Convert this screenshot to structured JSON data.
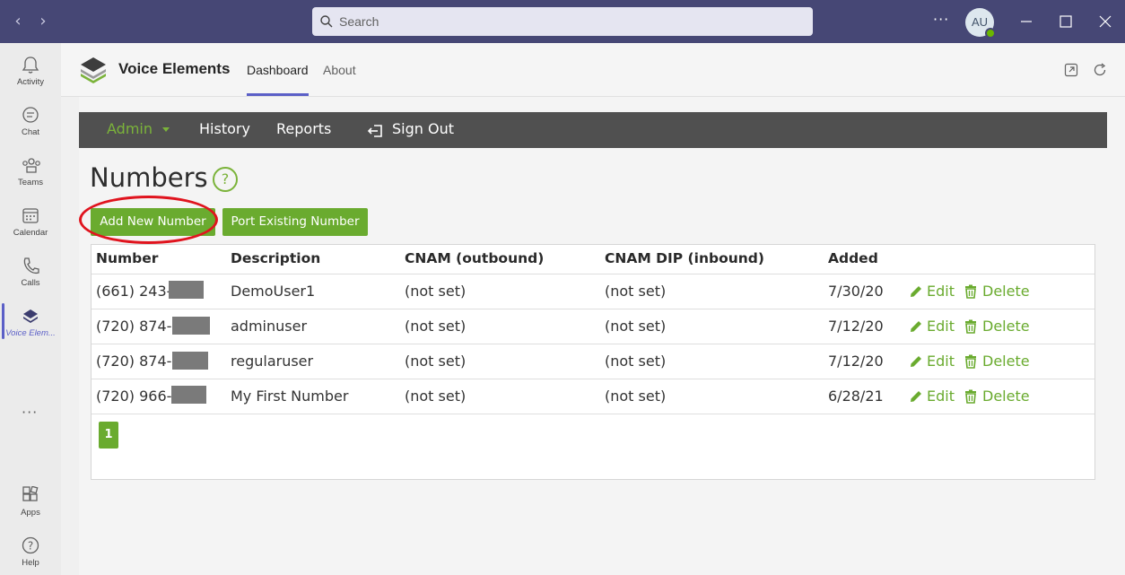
{
  "titlebar": {
    "search_placeholder": "Search",
    "more_label": "···",
    "avatar_initials": "AU"
  },
  "rail": {
    "items": [
      {
        "label": "Activity",
        "icon": "bell-icon"
      },
      {
        "label": "Chat",
        "icon": "chat-icon"
      },
      {
        "label": "Teams",
        "icon": "teams-icon"
      },
      {
        "label": "Calendar",
        "icon": "calendar-icon"
      },
      {
        "label": "Calls",
        "icon": "phone-icon"
      },
      {
        "label": "Voice Elem...",
        "icon": "voice-elements-icon"
      }
    ],
    "more_label": "···",
    "apps_label": "Apps",
    "help_label": "Help"
  },
  "app": {
    "name": "Voice Elements",
    "tabs": [
      {
        "label": "Dashboard"
      },
      {
        "label": "About"
      }
    ]
  },
  "navbar": {
    "admin": "Admin",
    "history": "History",
    "reports": "Reports",
    "signout": "Sign Out"
  },
  "page": {
    "title": "Numbers",
    "help": "?",
    "add_button": "Add New Number",
    "port_button": "Port Existing Number"
  },
  "table": {
    "headers": [
      "Number",
      "Description",
      "CNAM (outbound)",
      "CNAM DIP (inbound)",
      "Added"
    ],
    "rows": [
      {
        "number": "(661) 243-",
        "description": "DemoUser1",
        "cnam_out": "(not set)",
        "cnam_in": "(not set)",
        "added": "7/30/20"
      },
      {
        "number": "(720) 874-",
        "description": "adminuser",
        "cnam_out": "(not set)",
        "cnam_in": "(not set)",
        "added": "7/12/20"
      },
      {
        "number": "(720) 874-",
        "description": "regularuser",
        "cnam_out": "(not set)",
        "cnam_in": "(not set)",
        "added": "7/12/20"
      },
      {
        "number": "(720) 966-",
        "description": "My First Number",
        "cnam_out": "(not set)",
        "cnam_in": "(not set)",
        "added": "6/28/21"
      }
    ],
    "edit_label": "Edit",
    "delete_label": "Delete",
    "page_number": "1"
  },
  "colors": {
    "accent_green": "#6aab2f",
    "teams_purple": "#464775",
    "highlight_red": "#e0141e"
  }
}
